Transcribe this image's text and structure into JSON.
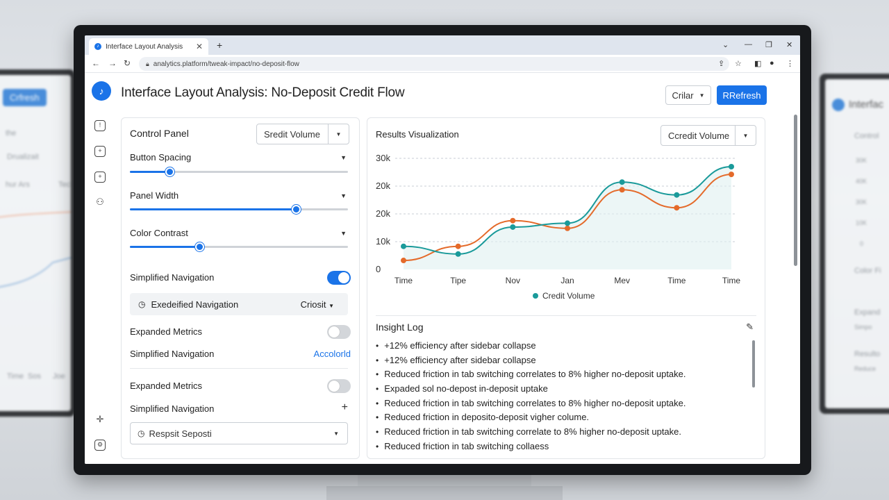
{
  "bg_left": {
    "refresh": "Crfresh",
    "label_a": "the",
    "select": "Drualizait",
    "axis_a": "hur Ars",
    "axis_b": "Teclo",
    "ticks": [
      "Time",
      "Sos",
      "Joe"
    ]
  },
  "bg_right": {
    "title": "Interfac",
    "control": "Control",
    "ticks": [
      "30K",
      "40K",
      "30K",
      "10K",
      "0"
    ],
    "color": "Color Fi",
    "expand": "Expand",
    "simp": "Simpo",
    "res": "Resulto",
    "red": "Reduce"
  },
  "browser": {
    "tab_title": "Interface Layout Analysis",
    "url": "analytics.platform/tweak-impact/no-deposit-flow"
  },
  "header": {
    "title": "Interface Layout Analysis: No-Deposit Credit Flow",
    "filter_label": "Crilar",
    "refresh_label": "RRefresh"
  },
  "control_panel": {
    "title": "Control Panel",
    "select_value": "Sredit Volume",
    "sliders": [
      {
        "label": "Button Spacing",
        "value": 0.18
      },
      {
        "label": "Panel Width",
        "value": 0.76
      },
      {
        "label": "Color Contrast",
        "value": 0.32
      }
    ],
    "nav_toggle": {
      "label": "Simplified Navigation",
      "on": true
    },
    "nav_sub": {
      "label": "Exedeified Navigation",
      "value": "Criosit"
    },
    "metrics_1": {
      "label": "Expanded Metrics",
      "on": false
    },
    "nav_link": {
      "label": "Simplified Navigation",
      "link": "Accolorld"
    },
    "metrics_2": {
      "label": "Expanded Metrics",
      "on": false
    },
    "nav_add": {
      "label": "Simplified Navigation",
      "icon": "+"
    },
    "bottom_select": "Respsit Seposti"
  },
  "results": {
    "title": "Results Visualization",
    "select_value": "Ccredit Volume",
    "insight_title": "Insight Log",
    "log": [
      "+12% efficiency after sidebar collapse",
      "+12%  efficiency after sidebar collapse",
      "Reduced friction in tab switching correlates to 8% higher no-deposit uptake.",
      "Expaded sol no-depost in-deposit uptake",
      "Reduced friction in tab switching correlates to 8% higher no-deposit uptake.",
      "Reduced friction in deposito-deposit vigher colume.",
      "Reduced friction in tab switching correlate to 8% higher no-deposit uptake.",
      "Reduced friction in tab switching collaess"
    ]
  },
  "chart_data": {
    "type": "line",
    "categories": [
      "Time",
      "Tipe",
      "Nov",
      "Jan",
      "Mev",
      "Time",
      "Time"
    ],
    "y_ticks": [
      "30k",
      "20k",
      "20k",
      "10k",
      "0"
    ],
    "ylim": [
      0,
      30000
    ],
    "grid": true,
    "legend": "bottom",
    "series": [
      {
        "name": "Credit Volume",
        "color": "#1a9a9a",
        "values": [
          9000,
          6000,
          16500,
          18000,
          34000,
          29000,
          40000
        ]
      },
      {
        "color": "#e46a2a",
        "values": [
          3500,
          9000,
          19000,
          16000,
          31000,
          24000,
          37000
        ]
      }
    ]
  },
  "colors": {
    "accent": "#1a73e8",
    "teal": "#1a9a9a",
    "orange": "#e46a2a"
  }
}
